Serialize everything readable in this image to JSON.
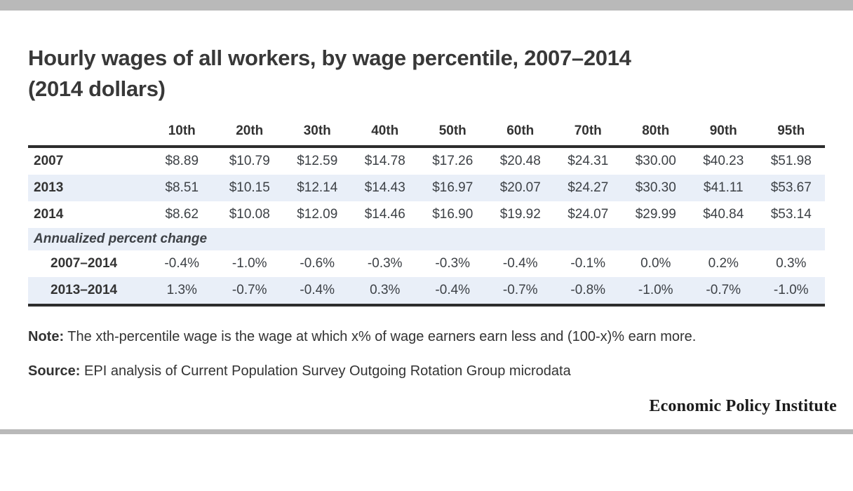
{
  "title": {
    "line1": "Hourly wages of all workers, by wage percentile, 2007–2014",
    "line2": "(2014 dollars)"
  },
  "note": {
    "label": "Note:",
    "text": " The xth-percentile wage is the wage at which x% of wage earners earn less and (100-x)% earn more."
  },
  "source": {
    "label": "Source:",
    "text": " EPI analysis of Current Population Survey Outgoing Rotation Group microdata"
  },
  "logo": "Economic Policy Institute",
  "colors": {
    "divider_gray": "#b9b9b9",
    "row_shade_blue": "#e9eff8",
    "table_border_dark": "#2d2d2d",
    "text_dark": "#333333"
  },
  "chart_data": {
    "type": "table",
    "title": "Hourly wages of all workers, by wage percentile, 2007–2014 (2014 dollars)",
    "columns": [
      "10th",
      "20th",
      "30th",
      "40th",
      "50th",
      "60th",
      "70th",
      "80th",
      "90th",
      "95th"
    ],
    "rows": [
      {
        "label": "2007",
        "values": [
          "$8.89",
          "$10.79",
          "$12.59",
          "$14.78",
          "$17.26",
          "$20.48",
          "$24.31",
          "$30.00",
          "$40.23",
          "$51.98"
        ]
      },
      {
        "label": "2013",
        "values": [
          "$8.51",
          "$10.15",
          "$12.14",
          "$14.43",
          "$16.97",
          "$20.07",
          "$24.27",
          "$30.30",
          "$41.11",
          "$53.67"
        ]
      },
      {
        "label": "2014",
        "values": [
          "$8.62",
          "$10.08",
          "$12.09",
          "$14.46",
          "$16.90",
          "$19.92",
          "$24.07",
          "$29.99",
          "$40.84",
          "$53.14"
        ]
      },
      {
        "label": "Annualized percent change",
        "section_header": true
      },
      {
        "label": "2007–2014",
        "indent": true,
        "values": [
          "-0.4%",
          "-1.0%",
          "-0.6%",
          "-0.3%",
          "-0.3%",
          "-0.4%",
          "-0.1%",
          "0.0%",
          "0.2%",
          "0.3%"
        ]
      },
      {
        "label": "2013–2014",
        "indent": true,
        "values": [
          "1.3%",
          "-0.7%",
          "-0.4%",
          "0.3%",
          "-0.4%",
          "-0.7%",
          "-0.8%",
          "-1.0%",
          "-0.7%",
          "-1.0%"
        ]
      }
    ]
  }
}
